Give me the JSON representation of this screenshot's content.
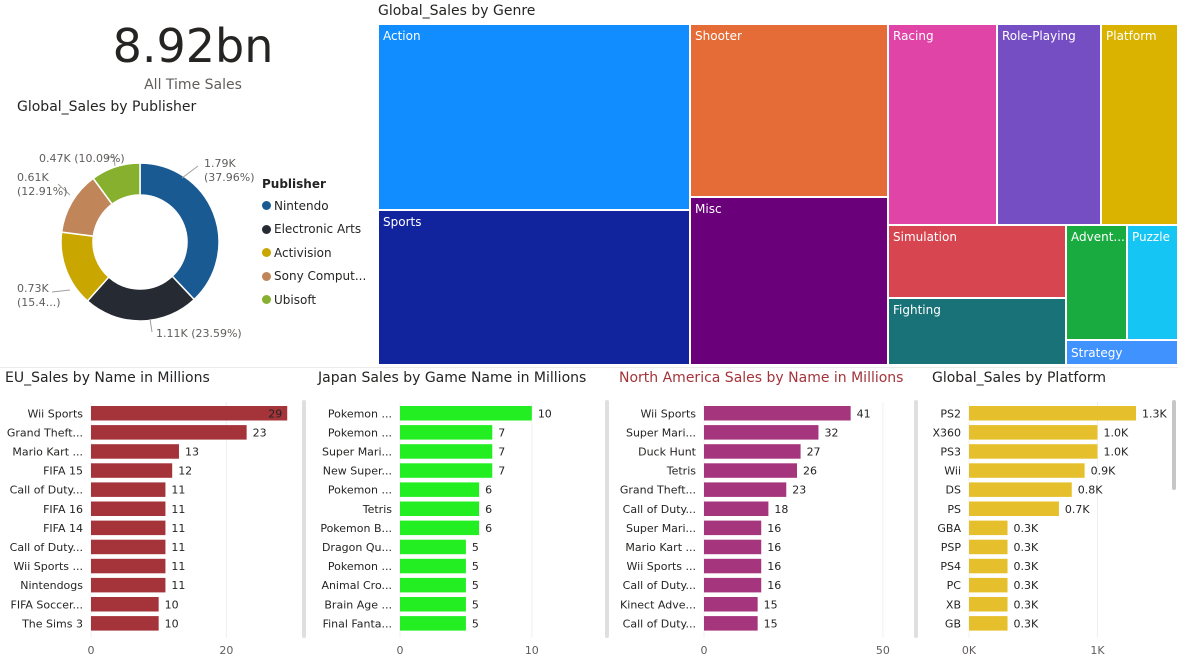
{
  "kpi": {
    "value": "8.92bn",
    "label": "All Time Sales"
  },
  "charts": {
    "publisher": {
      "title": "Global_Sales by Publisher",
      "legend_title": "Publisher",
      "colors": [
        "#1a5a93",
        "#262a33",
        "#c9a700",
        "#c1855a",
        "#86b02d"
      ]
    },
    "genre": {
      "title": "Global_Sales by Genre"
    },
    "eu": {
      "title": "EU_Sales by Name in Millions",
      "color": "#a4343a"
    },
    "jp": {
      "title": "Japan Sales by Game Name in Millions",
      "color": "#22ee22"
    },
    "na": {
      "title": "North America Sales by Name in Millions",
      "color": "#a5357d",
      "title_color": "#a4343a"
    },
    "platform": {
      "title": "Global_Sales by Platform",
      "color": "#e6c02c"
    }
  },
  "chart_data": [
    {
      "id": "publisher",
      "type": "pie",
      "title": "Global_Sales by Publisher",
      "legend": "Publisher",
      "legend_position": "right",
      "slices": [
        {
          "name": "Nintendo",
          "legend_label": "Nintendo",
          "value": 1.79,
          "percent": 37.96,
          "label_lines": [
            "1.79K",
            "(37.96%)"
          ]
        },
        {
          "name": "Electronic Arts",
          "legend_label": "Electronic Arts",
          "value": 1.11,
          "percent": 23.59,
          "label_lines": [
            "1.11K (23.59%)"
          ]
        },
        {
          "name": "Activision",
          "legend_label": "Activision",
          "value": 0.73,
          "percent": 15.4,
          "label_lines": [
            "0.73K",
            "(15.4...)"
          ]
        },
        {
          "name": "Sony Computer Entertainment",
          "legend_label": "Sony Comput...",
          "value": 0.61,
          "percent": 12.91,
          "label_lines": [
            "0.61K",
            "(12.91%)"
          ]
        },
        {
          "name": "Ubisoft",
          "legend_label": "Ubisoft",
          "value": 0.47,
          "percent": 10.09,
          "label_lines": [
            "0.47K (10.09%)"
          ]
        }
      ]
    },
    {
      "id": "genre",
      "type": "treemap",
      "title": "Global_Sales by Genre",
      "cells": [
        {
          "name": "Action",
          "color": "#118dff"
        },
        {
          "name": "Sports",
          "color": "#12239e"
        },
        {
          "name": "Shooter",
          "color": "#e66c37"
        },
        {
          "name": "Misc",
          "color": "#6b007b"
        },
        {
          "name": "Racing",
          "color": "#e044a7"
        },
        {
          "name": "Role-Playing",
          "color": "#744ec2"
        },
        {
          "name": "Platform",
          "color": "#d9b300"
        },
        {
          "name": "Simulation",
          "color": "#d64550"
        },
        {
          "name": "Fighting",
          "color": "#197278"
        },
        {
          "name": "Advent...",
          "color": "#1aab40"
        },
        {
          "name": "Puzzle",
          "color": "#15c6f4"
        },
        {
          "name": "Strategy",
          "color": "#4092ff"
        }
      ]
    },
    {
      "id": "eu",
      "type": "bar",
      "orientation": "horizontal",
      "title": "EU_Sales by Name in Millions",
      "categories": [
        "Wii Sports",
        "Grand Theft...",
        "Mario Kart ...",
        "FIFA 15",
        "Call of Duty...",
        "FIFA 16",
        "FIFA 14",
        "Call of Duty...",
        "Wii Sports ...",
        "Nintendogs",
        "FIFA Soccer...",
        "The Sims 3"
      ],
      "values": [
        29,
        23,
        13,
        12,
        11,
        11,
        11,
        11,
        11,
        11,
        10,
        10
      ],
      "value_labels": [
        "29",
        "23",
        "13",
        "12",
        "11",
        "11",
        "11",
        "11",
        "11",
        "11",
        "10",
        "10"
      ],
      "xlim": [
        0,
        30
      ],
      "ticks": [
        0,
        20
      ],
      "tick_labels": [
        "0",
        "20"
      ]
    },
    {
      "id": "jp",
      "type": "bar",
      "orientation": "horizontal",
      "title": "Japan Sales by Game Name in Millions",
      "categories": [
        "Pokemon ...",
        "Pokemon ...",
        "Super Mari...",
        "New Super...",
        "Pokemon ...",
        "Tetris",
        "Pokemon B...",
        "Dragon Qu...",
        "Pokemon ...",
        "Animal Cro...",
        "Brain Age ...",
        "Final Fanta..."
      ],
      "values": [
        10,
        7,
        7,
        7,
        6,
        6,
        6,
        5,
        5,
        5,
        5,
        5
      ],
      "value_labels": [
        "10",
        "7",
        "7",
        "7",
        "6",
        "6",
        "6",
        "5",
        "5",
        "5",
        "5",
        "5"
      ],
      "xlim": [
        0,
        11
      ],
      "ticks": [
        0,
        10
      ],
      "tick_labels": [
        "0",
        "10"
      ]
    },
    {
      "id": "na",
      "type": "bar",
      "orientation": "horizontal",
      "title": "North America Sales by Name in Millions",
      "categories": [
        "Wii Sports",
        "Super Mari...",
        "Duck Hunt",
        "Tetris",
        "Grand Theft...",
        "Call of Duty...",
        "Super Mari...",
        "Mario Kart ...",
        "Wii Sports ...",
        "Call of Duty...",
        "Kinect Adve...",
        "Call of Duty..."
      ],
      "values": [
        41,
        32,
        27,
        26,
        23,
        18,
        16,
        16,
        16,
        16,
        15,
        15
      ],
      "value_labels": [
        "41",
        "32",
        "27",
        "26",
        "23",
        "18",
        "16",
        "16",
        "16",
        "16",
        "15",
        "15"
      ],
      "xlim": [
        0,
        52
      ],
      "ticks": [
        0,
        50
      ],
      "tick_labels": [
        "0",
        "50"
      ]
    },
    {
      "id": "platform",
      "type": "bar",
      "orientation": "horizontal",
      "title": "Global_Sales by Platform",
      "categories": [
        "PS2",
        "X360",
        "PS3",
        "Wii",
        "DS",
        "PS",
        "GBA",
        "PSP",
        "PS4",
        "PC",
        "XB",
        "GB"
      ],
      "values": [
        1.3,
        1.0,
        1.0,
        0.9,
        0.8,
        0.7,
        0.3,
        0.3,
        0.3,
        0.3,
        0.3,
        0.3
      ],
      "value_labels": [
        "1.3K",
        "1.0K",
        "1.0K",
        "0.9K",
        "0.8K",
        "0.7K",
        "0.3K",
        "0.3K",
        "0.3K",
        "0.3K",
        "0.3K",
        "0.3K"
      ],
      "xlim": [
        0,
        1.3
      ],
      "ticks": [
        0,
        1
      ],
      "tick_labels": [
        "0K",
        "1K"
      ]
    }
  ]
}
